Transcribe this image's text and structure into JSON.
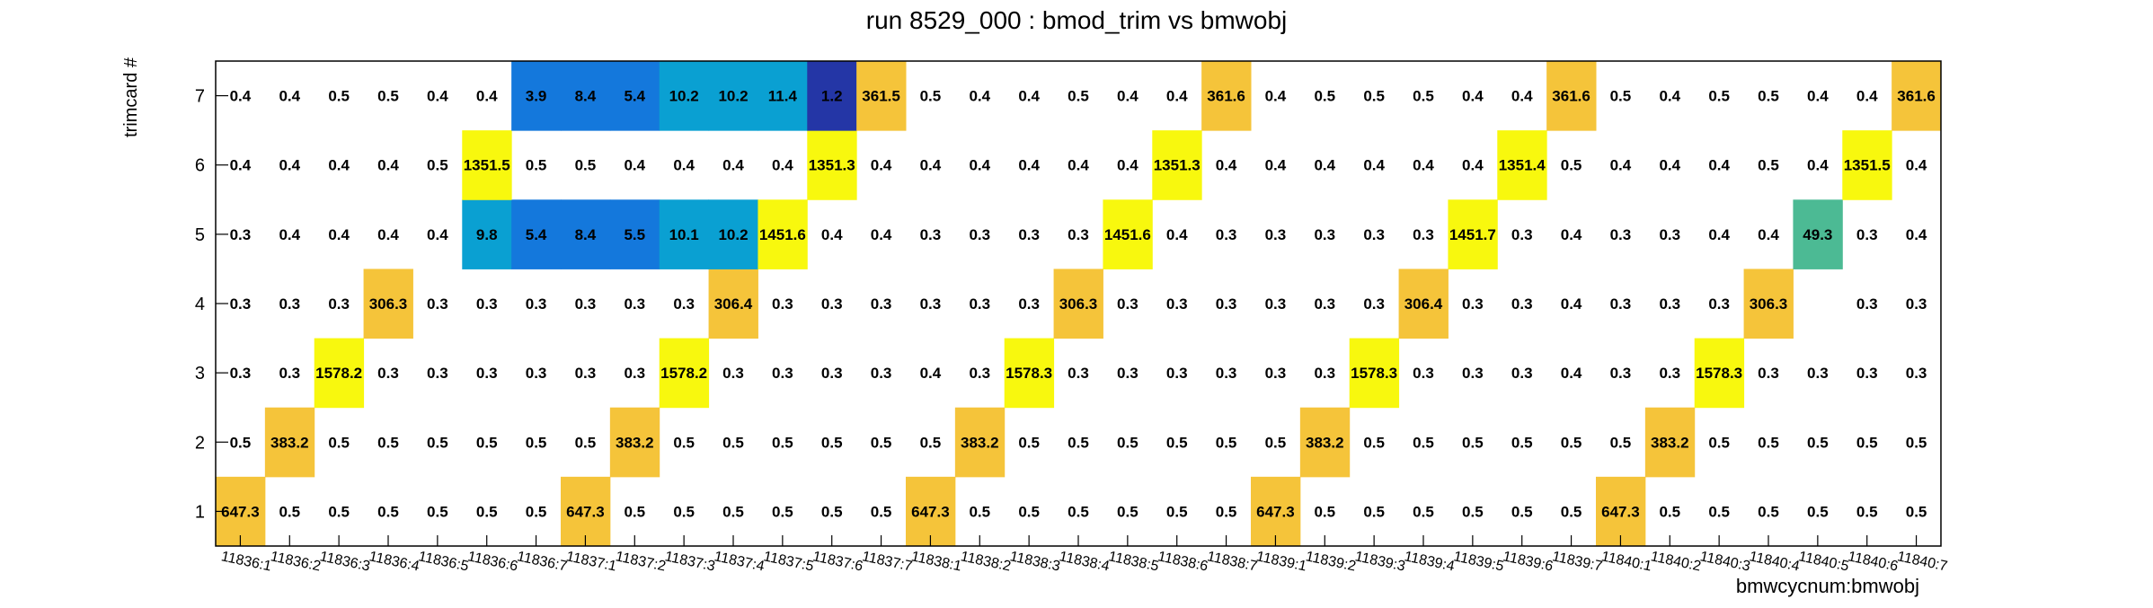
{
  "chart_data": {
    "type": "heatmap",
    "title": "run 8529_000 : bmod_trim vs bmwobj",
    "xlabel": "bmwcycnum:bmwobj",
    "ylabel": "trimcard #",
    "x_categories": [
      "11836:1",
      "11836:2",
      "11836:3",
      "11836:4",
      "11836:5",
      "11836:6",
      "11836:7",
      "11837:1",
      "11837:2",
      "11837:3",
      "11837:4",
      "11837:5",
      "11837:6",
      "11837:7",
      "11838:1",
      "11838:2",
      "11838:3",
      "11838:4",
      "11838:5",
      "11838:6",
      "11838:7",
      "11839:1",
      "11839:2",
      "11839:3",
      "11839:4",
      "11839:5",
      "11839:6",
      "11839:7",
      "11840:1",
      "11840:2",
      "11840:3",
      "11840:4",
      "11840:5",
      "11840:6",
      "11840:7"
    ],
    "y_categories": [
      "1",
      "2",
      "3",
      "4",
      "5",
      "6",
      "7"
    ],
    "values": [
      [
        "647.3",
        "0.5",
        "0.5",
        "0.5",
        "0.5",
        "0.5",
        "0.5",
        "647.3",
        "0.5",
        "0.5",
        "0.5",
        "0.5",
        "0.5",
        "0.5",
        "647.3",
        "0.5",
        "0.5",
        "0.5",
        "0.5",
        "0.5",
        "0.5",
        "647.3",
        "0.5",
        "0.5",
        "0.5",
        "0.5",
        "0.5",
        "0.5",
        "647.3",
        "0.5",
        "0.5",
        "0.5",
        "0.5",
        "0.5",
        "0.5"
      ],
      [
        "0.5",
        "383.2",
        "0.5",
        "0.5",
        "0.5",
        "0.5",
        "0.5",
        "0.5",
        "383.2",
        "0.5",
        "0.5",
        "0.5",
        "0.5",
        "0.5",
        "0.5",
        "383.2",
        "0.5",
        "0.5",
        "0.5",
        "0.5",
        "0.5",
        "0.5",
        "383.2",
        "0.5",
        "0.5",
        "0.5",
        "0.5",
        "0.5",
        "0.5",
        "383.2",
        "0.5",
        "0.5",
        "0.5",
        "0.5",
        "0.5"
      ],
      [
        "0.3",
        "0.3",
        "1578.2",
        "0.3",
        "0.3",
        "0.3",
        "0.3",
        "0.3",
        "0.3",
        "1578.2",
        "0.3",
        "0.3",
        "0.3",
        "0.3",
        "0.4",
        "0.3",
        "1578.3",
        "0.3",
        "0.3",
        "0.3",
        "0.3",
        "0.3",
        "0.3",
        "1578.3",
        "0.3",
        "0.3",
        "0.3",
        "0.4",
        "0.3",
        "0.3",
        "1578.3",
        "0.3",
        "0.3",
        "0.3",
        "0.3"
      ],
      [
        "0.3",
        "0.3",
        "0.3",
        "306.3",
        "0.3",
        "0.3",
        "0.3",
        "0.3",
        "0.3",
        "0.3",
        "306.4",
        "0.3",
        "0.3",
        "0.3",
        "0.3",
        "0.3",
        "0.3",
        "306.3",
        "0.3",
        "0.3",
        "0.3",
        "0.3",
        "0.3",
        "0.3",
        "306.4",
        "0.3",
        "0.3",
        "0.4",
        "0.3",
        "0.3",
        "0.3",
        "306.3",
        "",
        "0.3",
        "0.3"
      ],
      [
        "0.3",
        "0.4",
        "0.4",
        "0.4",
        "0.4",
        "9.8",
        "5.4",
        "8.4",
        "5.5",
        "10.1",
        "10.2",
        "1451.6",
        "0.4",
        "0.4",
        "0.3",
        "0.3",
        "0.3",
        "0.3",
        "1451.6",
        "0.4",
        "0.3",
        "0.3",
        "0.3",
        "0.3",
        "0.3",
        "1451.7",
        "0.3",
        "0.4",
        "0.3",
        "0.3",
        "0.4",
        "0.4",
        "49.3",
        "0.3",
        "0.4"
      ],
      [
        "0.4",
        "0.4",
        "0.4",
        "0.4",
        "0.5",
        "1351.5",
        "0.5",
        "0.5",
        "0.4",
        "0.4",
        "0.4",
        "0.4",
        "1351.3",
        "0.4",
        "0.4",
        "0.4",
        "0.4",
        "0.4",
        "0.4",
        "1351.3",
        "0.4",
        "0.4",
        "0.4",
        "0.4",
        "0.4",
        "0.4",
        "1351.4",
        "0.5",
        "0.4",
        "0.4",
        "0.4",
        "0.5",
        "0.4",
        "1351.5",
        "0.4"
      ],
      [
        "0.4",
        "0.4",
        "0.5",
        "0.5",
        "0.4",
        "0.4",
        "3.9",
        "8.4",
        "5.4",
        "10.2",
        "10.2",
        "11.4",
        "1.2",
        "361.5",
        "0.5",
        "0.4",
        "0.4",
        "0.5",
        "0.4",
        "0.4",
        "361.6",
        "0.4",
        "0.5",
        "0.5",
        "0.5",
        "0.4",
        "0.4",
        "361.6",
        "0.5",
        "0.4",
        "0.5",
        "0.5",
        "0.4",
        "0.4",
        "361.6"
      ]
    ],
    "colors": {
      "dark_navy": "#2436a6",
      "blue": "#1478dc",
      "light_blue": "#0aa0d2",
      "teal": "#4cba94",
      "gold": "#f5c43a",
      "yellow": "#f8f80e"
    },
    "grid": false,
    "legend": "none"
  }
}
